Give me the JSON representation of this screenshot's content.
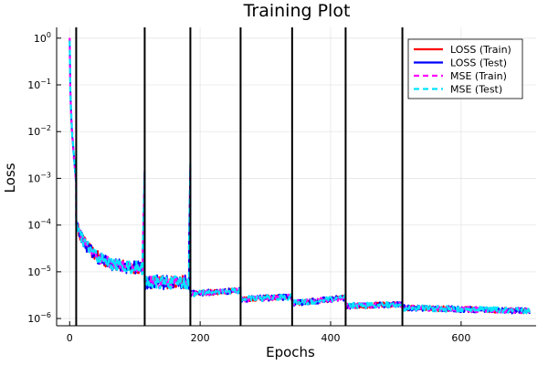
{
  "chart_data": {
    "type": "line",
    "title": "Training Plot",
    "xlabel": "Epochs",
    "ylabel": "Loss",
    "xlim": [
      -20,
      715
    ],
    "ylim": [
      7e-07,
      1.7
    ],
    "yscale": "log",
    "xticks": [
      0,
      200,
      400,
      600
    ],
    "yticks": [
      {
        "value": 1e-06,
        "base": "10",
        "exp": "−6"
      },
      {
        "value": 1e-05,
        "base": "10",
        "exp": "−5"
      },
      {
        "value": 0.0001,
        "base": "10",
        "exp": "−4"
      },
      {
        "value": 0.001,
        "base": "10",
        "exp": "−3"
      },
      {
        "value": 0.01,
        "base": "10",
        "exp": "−2"
      },
      {
        "value": 0.1,
        "base": "10",
        "exp": "−1"
      },
      {
        "value": 1,
        "base": "10",
        "exp": "0"
      }
    ],
    "grid": true,
    "legend_position": "top-right",
    "vlines": [
      10,
      115,
      185,
      262,
      341,
      423,
      510
    ],
    "segments": [
      {
        "x0": 0,
        "x1": 10,
        "y0": 1.0,
        "y1": 0.0008
      },
      {
        "x0": 10,
        "x1": 112,
        "y0": 0.0001,
        "y1": 1.2e-05
      },
      {
        "x0": 112,
        "x1": 115,
        "y0": 2.5e-05,
        "y1": 0.0013
      },
      {
        "x0": 115,
        "x1": 183,
        "y0": 6e-06,
        "y1": 6e-06
      },
      {
        "x0": 183,
        "x1": 185,
        "y0": 4e-05,
        "y1": 0.0018
      },
      {
        "x0": 185,
        "x1": 262,
        "y0": 3.4e-06,
        "y1": 4e-06
      },
      {
        "x0": 262,
        "x1": 341,
        "y0": 2.6e-06,
        "y1": 2.9e-06
      },
      {
        "x0": 341,
        "x1": 423,
        "y0": 2.1e-06,
        "y1": 2.8e-06
      },
      {
        "x0": 423,
        "x1": 510,
        "y0": 1.85e-06,
        "y1": 2e-06
      },
      {
        "x0": 510,
        "x1": 705,
        "y0": 1.7e-06,
        "y1": 1.45e-06
      }
    ],
    "series": [
      {
        "name": "LOSS (Train)",
        "color": "#ff0000",
        "style": "solid"
      },
      {
        "name": "LOSS (Test)",
        "color": "#0000ff",
        "style": "solid"
      },
      {
        "name": "MSE (Train)",
        "color": "#ff00ff",
        "style": "dashed"
      },
      {
        "name": "MSE (Test)",
        "color": "#00e5ff",
        "style": "dashed"
      }
    ]
  }
}
